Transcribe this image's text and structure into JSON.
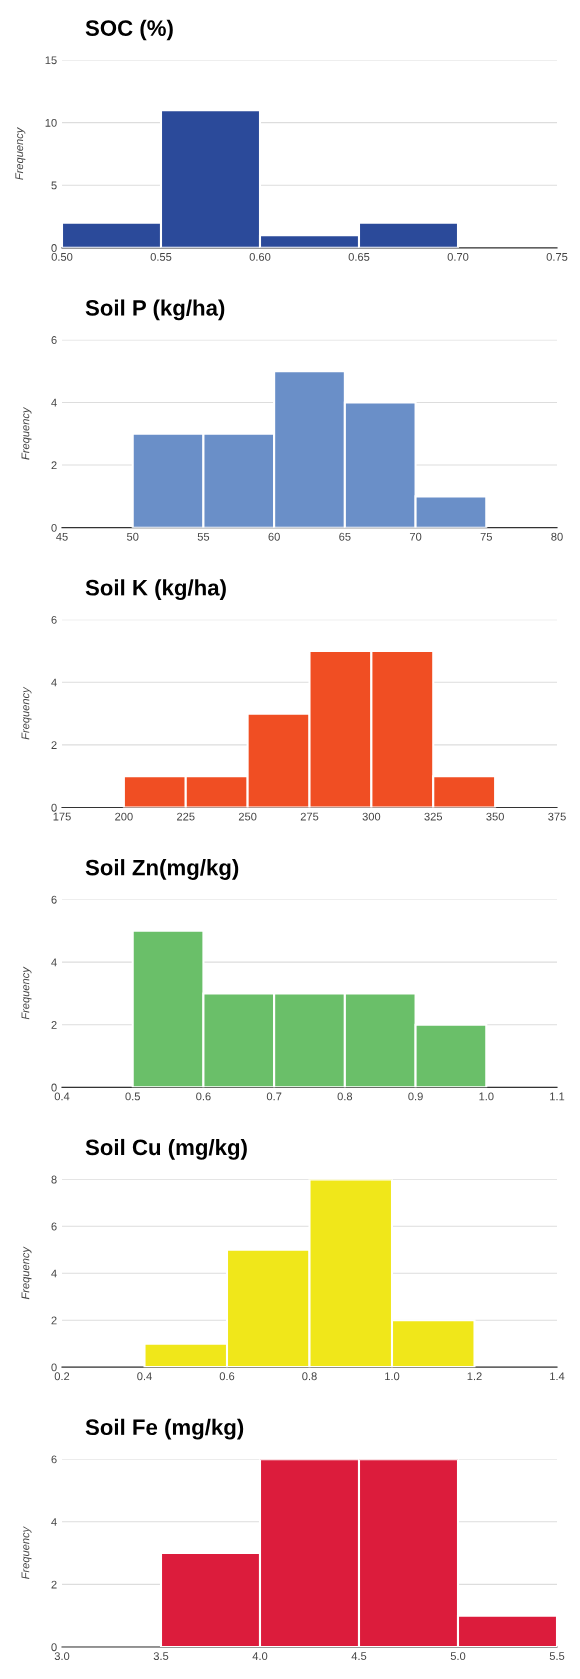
{
  "chart_data": [
    {
      "type": "histogram",
      "title": "SOC (%)",
      "ylabel": "Frequency",
      "color": "#2b4a9a",
      "bins": [
        0.5,
        0.55,
        0.6,
        0.65,
        0.7
      ],
      "values": [
        2,
        11,
        1,
        2
      ],
      "xlim": [
        0.5,
        0.75
      ],
      "xticks": [
        {
          "value": 0.5,
          "label": "0.50"
        },
        {
          "value": 0.55,
          "label": "0.55"
        },
        {
          "value": 0.6,
          "label": "0.60"
        },
        {
          "value": 0.65,
          "label": "0.65"
        },
        {
          "value": 0.7,
          "label": "0.70"
        },
        {
          "value": 0.75,
          "label": "0.75"
        }
      ],
      "ylim": [
        0,
        15
      ],
      "yticks": [
        0,
        5,
        10,
        15
      ],
      "grid": "y"
    },
    {
      "type": "histogram",
      "title": "Soil P (kg/ha)",
      "ylabel": "Frequency",
      "color": "#6a8fc8",
      "bins": [
        50,
        55,
        60,
        65,
        70,
        75
      ],
      "values": [
        3,
        3,
        5,
        4,
        1
      ],
      "xlim": [
        45,
        80
      ],
      "xticks": [
        45,
        50,
        55,
        60,
        65,
        70,
        75,
        80
      ],
      "ylim": [
        0,
        6
      ],
      "yticks": [
        0,
        2,
        4,
        6
      ],
      "grid": "y"
    },
    {
      "type": "histogram",
      "title": "Soil K (kg/ha)",
      "ylabel": "Frequency",
      "color": "#f04e23",
      "bins": [
        200,
        225,
        250,
        275,
        300,
        325,
        350
      ],
      "values": [
        1,
        1,
        3,
        5,
        5,
        1
      ],
      "xlim": [
        175,
        375
      ],
      "xticks": [
        175,
        200,
        225,
        250,
        275,
        300,
        325,
        350,
        375
      ],
      "ylim": [
        0,
        6
      ],
      "yticks": [
        0,
        2,
        4,
        6
      ],
      "grid": "y"
    },
    {
      "type": "histogram",
      "title": "Soil Zn(mg/kg)",
      "ylabel": "Frequency",
      "color": "#6abf69",
      "bins": [
        0.5,
        0.6,
        0.7,
        0.8,
        0.9,
        1.0
      ],
      "values": [
        5,
        3,
        3,
        3,
        2
      ],
      "xlim": [
        0.4,
        1.1
      ],
      "xticks": [
        {
          "value": 0.4,
          "label": "0.4"
        },
        {
          "value": 0.5,
          "label": "0.5"
        },
        {
          "value": 0.6,
          "label": "0.6"
        },
        {
          "value": 0.7,
          "label": "0.7"
        },
        {
          "value": 0.8,
          "label": "0.8"
        },
        {
          "value": 0.9,
          "label": "0.9"
        },
        {
          "value": 1.0,
          "label": "1.0"
        },
        {
          "value": 1.1,
          "label": "1.1"
        }
      ],
      "ylim": [
        0,
        6
      ],
      "yticks": [
        0,
        2,
        4,
        6
      ],
      "grid": "y"
    },
    {
      "type": "histogram",
      "title": "Soil Cu (mg/kg)",
      "ylabel": "Frequency",
      "color": "#f0e71a",
      "bins": [
        0.4,
        0.6,
        0.8,
        1.0,
        1.2
      ],
      "values": [
        1,
        5,
        8,
        2
      ],
      "xlim": [
        0.2,
        1.4
      ],
      "xticks": [
        {
          "value": 0.2,
          "label": "0.2"
        },
        {
          "value": 0.4,
          "label": "0.4"
        },
        {
          "value": 0.6,
          "label": "0.6"
        },
        {
          "value": 0.8,
          "label": "0.8"
        },
        {
          "value": 1.0,
          "label": "1.0"
        },
        {
          "value": 1.2,
          "label": "1.2"
        },
        {
          "value": 1.4,
          "label": "1.4"
        }
      ],
      "ylim": [
        0,
        8
      ],
      "yticks": [
        0,
        2,
        4,
        6,
        8
      ],
      "grid": "y"
    },
    {
      "type": "histogram",
      "title": "Soil Fe (mg/kg)",
      "ylabel": "Frequency",
      "color": "#dc1c3c",
      "bins": [
        3.5,
        4.0,
        4.5,
        5.0,
        5.5
      ],
      "values": [
        3,
        6,
        6,
        1
      ],
      "xlim": [
        3.0,
        5.5
      ],
      "xticks": [
        {
          "value": 3.0,
          "label": "3.0"
        },
        {
          "value": 3.5,
          "label": "3.5"
        },
        {
          "value": 4.0,
          "label": "4.0"
        },
        {
          "value": 4.5,
          "label": "4.5"
        },
        {
          "value": 5.0,
          "label": "5.0"
        },
        {
          "value": 5.5,
          "label": "5.5"
        }
      ],
      "ylim": [
        0,
        6
      ],
      "yticks": [
        0,
        2,
        4,
        6
      ],
      "grid": "y"
    }
  ]
}
